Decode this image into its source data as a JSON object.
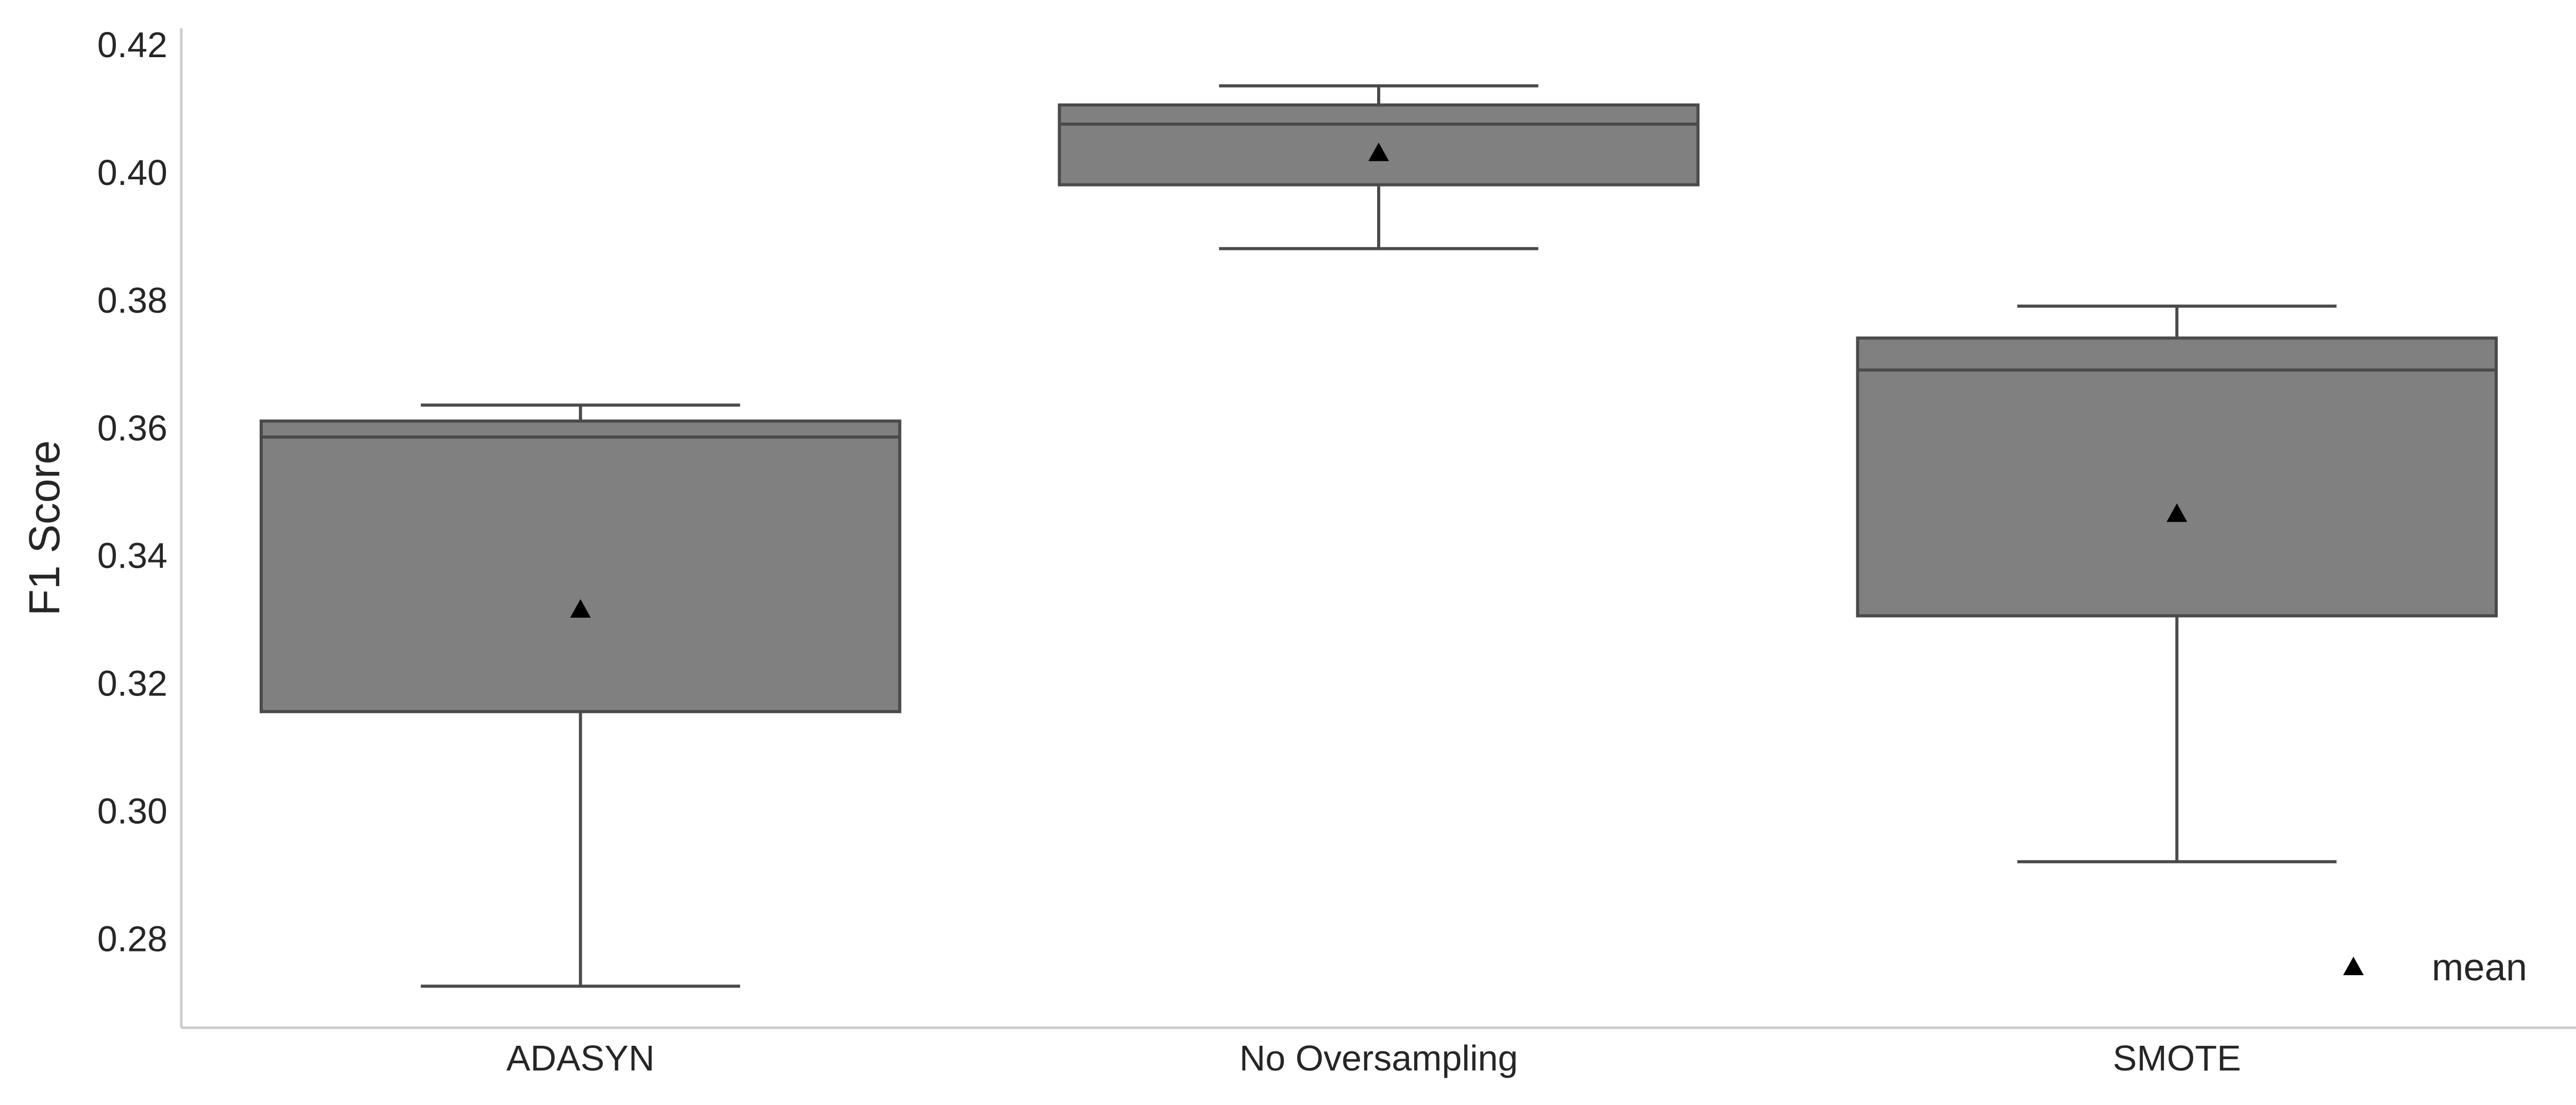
{
  "chart_data": {
    "type": "box",
    "title": "",
    "xlabel": "",
    "ylabel": "F1 Score",
    "ylim": [
      0.266,
      0.4225
    ],
    "yticks": [
      0.28,
      0.3,
      0.32,
      0.34,
      0.36,
      0.38,
      0.4,
      0.42
    ],
    "ytick_labels": [
      "0.28",
      "0.30",
      "0.32",
      "0.34",
      "0.36",
      "0.38",
      "0.40",
      "0.42"
    ],
    "grid": false,
    "legend": {
      "position": "bottom-right",
      "entries": [
        {
          "label": "mean",
          "marker": "triangle",
          "color": "#000000"
        }
      ]
    },
    "colors": {
      "box_fill": "#808080",
      "box_edge": "#4a4a4a",
      "mean_marker": "#000000",
      "axis": "#cccccc"
    },
    "categories": [
      "ADASYN",
      "No Oversampling",
      "SMOTE"
    ],
    "boxes": [
      {
        "category": "ADASYN",
        "whisker_low": 0.2725,
        "q1": 0.3155,
        "median": 0.3585,
        "q3": 0.361,
        "whisker_high": 0.3635,
        "mean": 0.3315
      },
      {
        "category": "No Oversampling",
        "whisker_low": 0.388,
        "q1": 0.398,
        "median": 0.4075,
        "q3": 0.4105,
        "whisker_high": 0.4135,
        "mean": 0.403
      },
      {
        "category": "SMOTE",
        "whisker_low": 0.292,
        "q1": 0.3305,
        "median": 0.369,
        "q3": 0.374,
        "whisker_high": 0.379,
        "mean": 0.3465
      }
    ]
  }
}
